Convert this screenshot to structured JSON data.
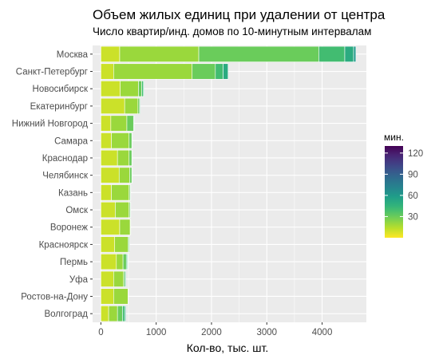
{
  "chart_data": {
    "type": "bar",
    "orientation": "horizontal",
    "stacked": true,
    "title": "Объем жилых единиц при удалении от центра",
    "subtitle": "Число квартир/инд. домов по 10-минутным интервалам",
    "xlabel": "Кол-во, тыс. шт.",
    "xlim": [
      -150,
      4800
    ],
    "xticks": [
      0,
      1000,
      2000,
      3000,
      4000
    ],
    "grid": true,
    "legend": {
      "title": "мин.",
      "position": "right",
      "type": "colorbar",
      "range": [
        0,
        130
      ],
      "ticks": [
        30,
        60,
        90,
        120
      ]
    },
    "categories": [
      "Москва",
      "Санкт-Петербург",
      "Новосибирск",
      "Екатеринбург",
      "Нижний Новгород",
      "Самара",
      "Краснодар",
      "Челябинск",
      "Казань",
      "Омск",
      "Воронеж",
      "Красноярск",
      "Пермь",
      "Уфа",
      "Ростов-на-Дону",
      "Волгоград"
    ],
    "series": [
      {
        "minutes": 10,
        "values": [
          340,
          230,
          350,
          430,
          180,
          190,
          300,
          330,
          190,
          260,
          340,
          250,
          280,
          230,
          230,
          140
        ]
      },
      {
        "minutes": 20,
        "values": [
          1430,
          1420,
          330,
          240,
          290,
          320,
          210,
          190,
          320,
          250,
          190,
          240,
          120,
          180,
          260,
          160
        ]
      },
      {
        "minutes": 30,
        "values": [
          2170,
          420,
          60,
          30,
          120,
          50,
          50,
          40,
          20,
          20,
          10,
          20,
          60,
          20,
          0,
          90
        ]
      },
      {
        "minutes": 40,
        "values": [
          470,
          140,
          30,
          10,
          10,
          10,
          10,
          10,
          10,
          10,
          0,
          10,
          20,
          20,
          0,
          40
        ]
      },
      {
        "minutes": 50,
        "values": [
          160,
          90,
          10,
          0,
          0,
          0,
          0,
          0,
          0,
          0,
          0,
          0,
          10,
          0,
          0,
          20
        ]
      },
      {
        "minutes": 60,
        "values": [
          40,
          0,
          0,
          0,
          0,
          0,
          0,
          0,
          0,
          0,
          0,
          0,
          0,
          0,
          0,
          0
        ]
      }
    ],
    "colors": {
      "panel": "#ebebeb",
      "grid": "#ffffff",
      "bar_outline": "#ffffff",
      "viridis": [
        "#440154",
        "#482878",
        "#3e4989",
        "#31688e",
        "#26828e",
        "#1f9e89",
        "#35b779",
        "#6ece58",
        "#b5de2b",
        "#fde725"
      ]
    }
  }
}
